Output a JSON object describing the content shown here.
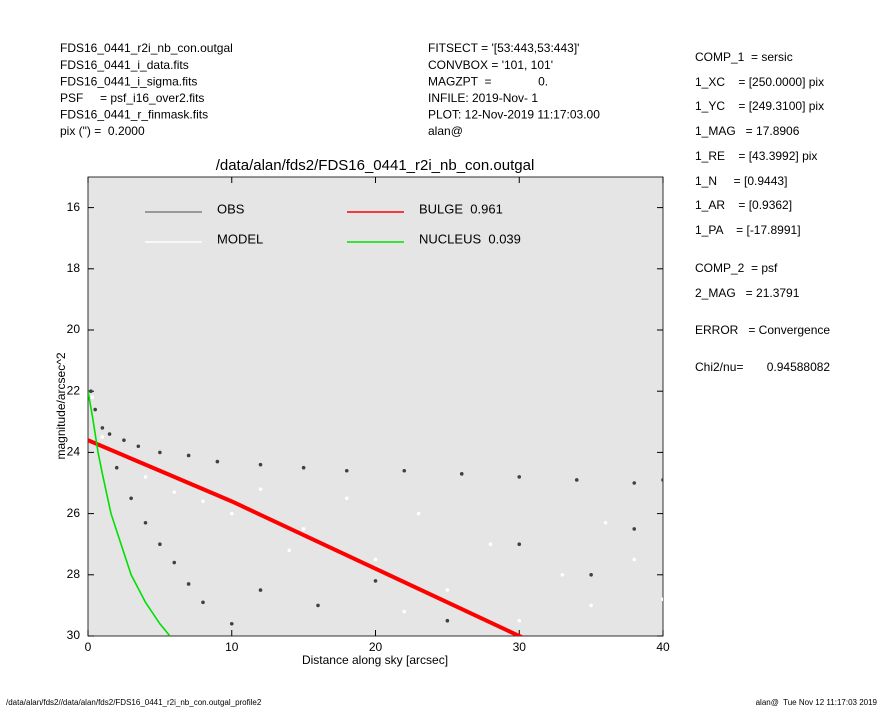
{
  "header": {
    "left": [
      "FDS16_0441_r2i_nb_con.outgal",
      "FDS16_0441_i_data.fits",
      "FDS16_0441_i_sigma.fits",
      "PSF     = psf_i16_over2.fits",
      "FDS16_0441_r_finmask.fits",
      "pix (\") =  0.2000"
    ],
    "middle": [
      "FITSECT = '[53:443,53:443]'",
      "CONVBOX = '101, 101'",
      "MAGZPT  =              0.",
      "INFILE: 2019-Nov- 1",
      "PLOT: 12-Nov-2019 11:17:03.00",
      "alan@"
    ],
    "right": [
      "COMP_1  = sersic",
      "1_XC    = [250.0000] pix",
      "1_YC    = [249.3100] pix",
      "1_MAG   = 17.8906",
      "1_RE    = [43.3992] pix",
      "1_N     = [0.9443]",
      "1_AR    = [0.9362]",
      "1_PA    = [-17.8991]",
      "COMP_2  = psf",
      "2_MAG   = 21.3791",
      "ERROR   = Convergence",
      "Chi2/nu=       0.94588082"
    ]
  },
  "footer": {
    "left": "/data/alan/fds2//data/alan/fds2/FDS16_0441_r2i_nb_con.outgal_profile2",
    "right": "alan@  Tue Nov 12 11:17:03 2019"
  },
  "chart_data": {
    "type": "scatter",
    "title": "/data/alan/fds2/FDS16_0441_r2i_nb_con.outgal",
    "x_label": "Distance along sky [arcsec]",
    "y_label": "magnitude/arcsec^2",
    "xlim": [
      0,
      40
    ],
    "ylim": [
      30,
      15
    ],
    "y_inverted": true,
    "xticks": [
      0,
      10,
      20,
      30,
      40
    ],
    "yticks": [
      16,
      18,
      20,
      22,
      24,
      26,
      28,
      30
    ],
    "background": "#e5e5e5",
    "series": [
      {
        "name": "OBS",
        "kind": "points",
        "color": "#808080",
        "marker_color": "#404040",
        "x": [
          0.2,
          0.5,
          1.0,
          1.5,
          2.5,
          3.5,
          5,
          7,
          9,
          12,
          15,
          18,
          22,
          26,
          30,
          34,
          38,
          40,
          2,
          3,
          4,
          5,
          6,
          7,
          8,
          10,
          12,
          16,
          20,
          25,
          30,
          35,
          38
        ],
        "values": [
          22.0,
          22.6,
          23.2,
          23.4,
          23.6,
          23.8,
          24.0,
          24.1,
          24.3,
          24.4,
          24.5,
          24.6,
          24.6,
          24.7,
          24.8,
          24.9,
          25.0,
          24.9,
          24.5,
          25.5,
          26.3,
          27.0,
          27.6,
          28.3,
          28.9,
          29.6,
          28.5,
          29.0,
          28.2,
          29.5,
          27.0,
          28.0,
          26.5
        ]
      },
      {
        "name": "MODEL",
        "kind": "points",
        "color": "#ffffff",
        "marker_color": "#ffffff",
        "x": [
          0.3,
          1,
          2,
          4,
          6,
          8,
          10,
          12,
          15,
          18,
          20,
          23,
          25,
          28,
          30,
          33,
          35,
          38,
          40,
          14,
          22,
          36
        ],
        "values": [
          22.2,
          23.5,
          24.0,
          24.8,
          25.3,
          25.6,
          26.0,
          25.2,
          26.5,
          25.5,
          27.5,
          26.0,
          28.5,
          27.0,
          29.5,
          28.0,
          29.0,
          27.5,
          28.8,
          27.2,
          29.2,
          26.3
        ]
      },
      {
        "name": "BULGE  0.961",
        "kind": "line",
        "color": "#ff0000",
        "x": [
          0,
          5,
          10,
          15,
          20,
          25,
          30,
          31
        ],
        "values": [
          23.6,
          24.6,
          25.6,
          26.7,
          27.8,
          28.9,
          30.0,
          30.2
        ]
      },
      {
        "name": "NUCLEUS  0.039",
        "kind": "line",
        "color": "#00e000",
        "x": [
          0,
          0.3,
          0.7,
          1.0,
          1.6,
          2.3,
          3.0,
          4.0,
          5.0,
          5.7
        ],
        "values": [
          22.0,
          22.8,
          24.0,
          24.7,
          26.0,
          27.0,
          28.0,
          28.9,
          29.6,
          30.0
        ]
      }
    ]
  }
}
